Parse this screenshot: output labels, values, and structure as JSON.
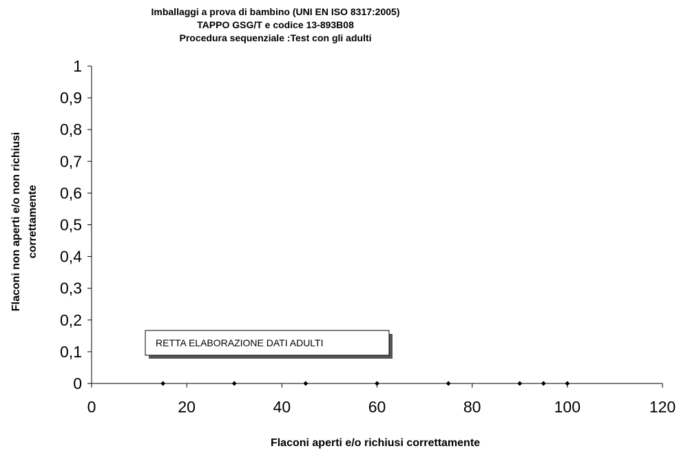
{
  "chart_data": {
    "type": "scatter",
    "title_lines": [
      "Imballaggi a prova di bambino (UNI EN ISO 8317:2005)",
      "TAPPO GSG/T e codice 13-893B08",
      "Procedura sequenziale :Test con gli adulti"
    ],
    "xlabel": "Flaconi   aperti e/o richiusi correttamente",
    "ylabel_lines": [
      "Flaconi  non aperti e/o non richiusi",
      "correttamente"
    ],
    "xlim": [
      0,
      120
    ],
    "ylim": [
      0,
      1
    ],
    "x_ticks": [
      "0",
      "20",
      "40",
      "60",
      "80",
      "100",
      "120"
    ],
    "y_ticks": [
      "0",
      "0,1",
      "0,2",
      "0,3",
      "0,4",
      "0,5",
      "0,6",
      "0,7",
      "0,8",
      "0,9",
      "1"
    ],
    "grid": false,
    "series": [
      {
        "marker_color": "#000000",
        "points": [
          {
            "x": 15,
            "y": 0
          },
          {
            "x": 30,
            "y": 0
          },
          {
            "x": 45,
            "y": 0
          },
          {
            "x": 60,
            "y": 0
          },
          {
            "x": 75,
            "y": 0
          },
          {
            "x": 90,
            "y": 0
          },
          {
            "x": 95,
            "y": 0
          },
          {
            "x": 100,
            "y": 0
          }
        ]
      }
    ],
    "annotation": "RETTA ELABORAZIONE DATI ADULTI"
  }
}
